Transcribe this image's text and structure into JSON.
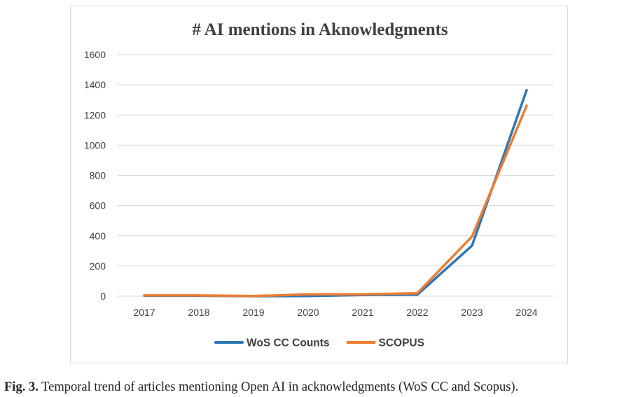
{
  "chart_data": {
    "type": "line",
    "title": "# AI mentions in Aknowledgments",
    "xlabel": "",
    "ylabel": "",
    "categories": [
      "2017",
      "2018",
      "2019",
      "2020",
      "2021",
      "2022",
      "2023",
      "2024"
    ],
    "ylim": [
      0,
      1600
    ],
    "yticks": [
      "0",
      "200",
      "400",
      "600",
      "800",
      "1000",
      "1200",
      "1400",
      "1600"
    ],
    "grid": true,
    "legend_position": "bottom",
    "series": [
      {
        "name": "WoS CC Counts",
        "color": "#2E75B6",
        "values": [
          3,
          3,
          0,
          1,
          8,
          10,
          335,
          1365
        ]
      },
      {
        "name": "SCOPUS",
        "color": "#ED7D31",
        "values": [
          5,
          5,
          1,
          12,
          12,
          20,
          395,
          1262
        ]
      }
    ]
  },
  "caption": {
    "label": "Fig. 3.",
    "text": "Temporal trend of articles mentioning Open AI in acknowledgments (WoS CC and Scopus)."
  }
}
